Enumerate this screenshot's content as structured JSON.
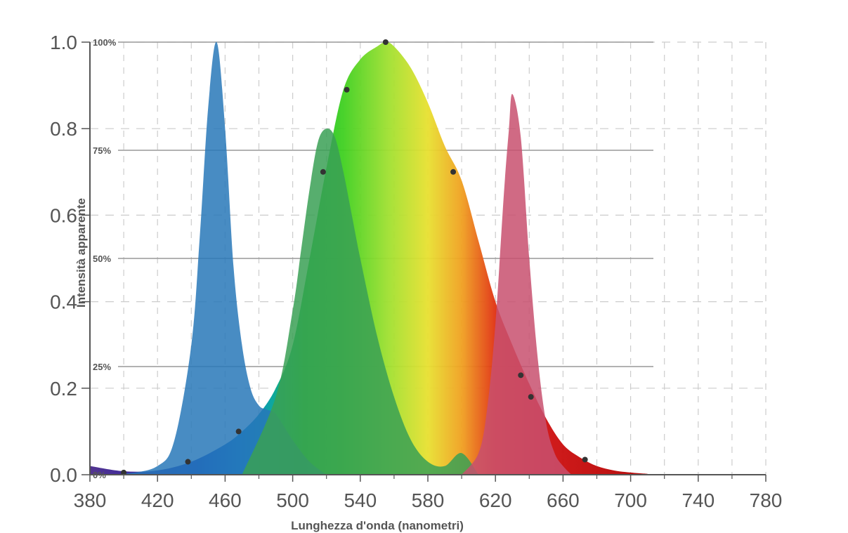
{
  "chart_data": {
    "type": "area",
    "title": "",
    "xlabel": "Lunghezza d'onda (nanometri)",
    "ylabel": "Intensità apparente",
    "xlim": [
      380,
      780
    ],
    "ylim": [
      0,
      1.0
    ],
    "x_ticks": [
      "380",
      "420",
      "460",
      "500",
      "540",
      "580",
      "620",
      "660",
      "700",
      "740",
      "780"
    ],
    "y_ticks": [
      "0.0",
      "0.2",
      "0.4",
      "0.6",
      "0.8",
      "1.0"
    ],
    "percent_ticks": [
      {
        "label": "0%",
        "value": 0
      },
      {
        "label": "25%",
        "value": 0.25
      },
      {
        "label": "50%",
        "value": 0.5
      },
      {
        "label": "75%",
        "value": 0.75
      },
      {
        "label": "100%",
        "value": 1.0
      }
    ],
    "grid": true,
    "series": [
      {
        "color": "#2878b8",
        "x": [
          380,
          400,
          420,
          430,
          440,
          445,
          450,
          455,
          460,
          465,
          470,
          475,
          480,
          485,
          490,
          500,
          510,
          520
        ],
        "y": [
          0,
          0.002,
          0.02,
          0.08,
          0.3,
          0.55,
          0.85,
          1.0,
          0.8,
          0.48,
          0.3,
          0.2,
          0.16,
          0.15,
          0.14,
          0.08,
          0.03,
          0.0
        ]
      },
      {
        "color": "#3aa055",
        "x": [
          470,
          490,
          500,
          505,
          510,
          515,
          520,
          525,
          530,
          535,
          540,
          550,
          560,
          570,
          580,
          590,
          600,
          610
        ],
        "y": [
          0,
          0.18,
          0.38,
          0.52,
          0.66,
          0.77,
          0.8,
          0.78,
          0.7,
          0.6,
          0.5,
          0.32,
          0.18,
          0.08,
          0.03,
          0.02,
          0.05,
          0.0
        ]
      },
      {
        "color": "#c8506e",
        "x": [
          600,
          610,
          615,
          620,
          625,
          628,
          630,
          635,
          640,
          645,
          650,
          655,
          660,
          665
        ],
        "y": [
          0,
          0.05,
          0.15,
          0.35,
          0.65,
          0.8,
          0.88,
          0.78,
          0.5,
          0.27,
          0.12,
          0.05,
          0.02,
          0.0
        ]
      },
      {
        "color": "spectrum",
        "x": [
          380,
          400,
          420,
          440,
          460,
          470,
          480,
          490,
          500,
          510,
          520,
          530,
          540,
          550,
          555,
          560,
          570,
          580,
          590,
          600,
          610,
          620,
          630,
          640,
          650,
          660,
          670,
          680,
          690,
          700,
          710
        ],
        "y": [
          0.02,
          0.008,
          0.01,
          0.03,
          0.07,
          0.1,
          0.14,
          0.2,
          0.3,
          0.5,
          0.71,
          0.89,
          0.96,
          0.99,
          1.0,
          0.99,
          0.94,
          0.86,
          0.76,
          0.68,
          0.54,
          0.4,
          0.3,
          0.21,
          0.13,
          0.07,
          0.04,
          0.02,
          0.01,
          0.005,
          0.002
        ]
      }
    ],
    "markers": [
      {
        "x": 400,
        "y": 0.005
      },
      {
        "x": 438,
        "y": 0.03
      },
      {
        "x": 468,
        "y": 0.1
      },
      {
        "x": 518,
        "y": 0.7
      },
      {
        "x": 532,
        "y": 0.89
      },
      {
        "x": 555,
        "y": 1.0
      },
      {
        "x": 595,
        "y": 0.7
      },
      {
        "x": 635,
        "y": 0.23
      },
      {
        "x": 641,
        "y": 0.18
      },
      {
        "x": 673,
        "y": 0.035
      }
    ]
  }
}
